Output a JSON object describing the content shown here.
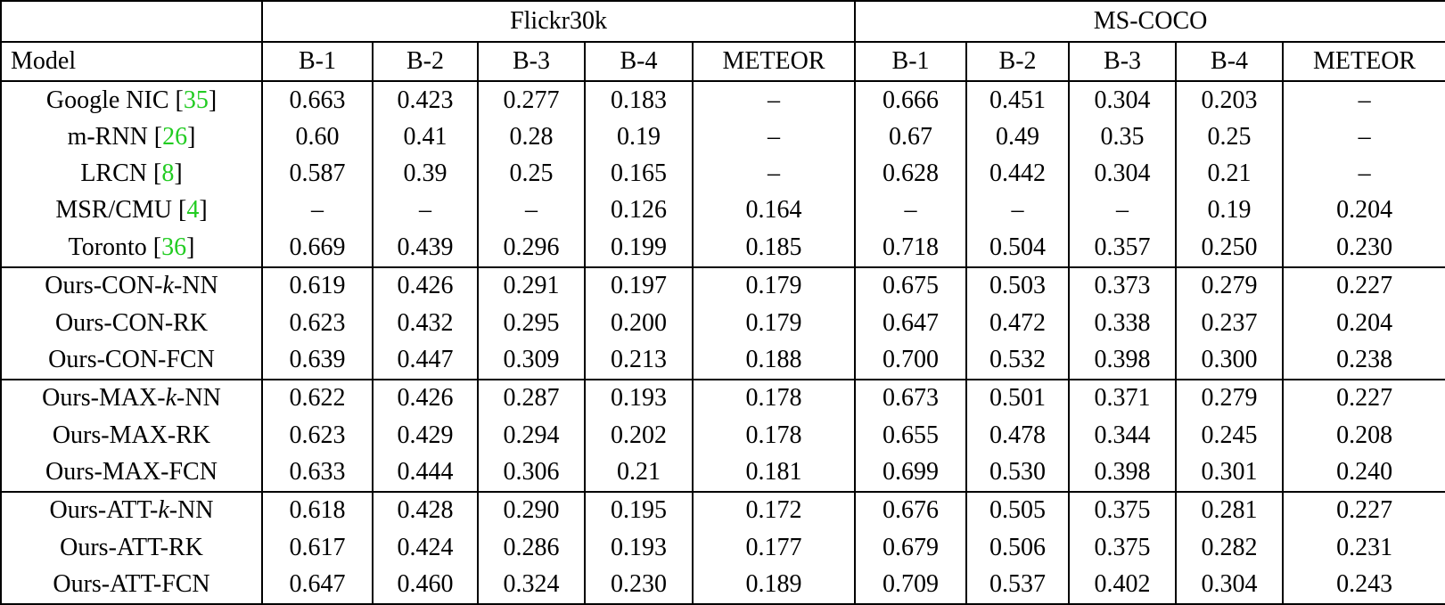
{
  "table": {
    "datasets": [
      "Flickr30k",
      "MS-COCO"
    ],
    "columns": [
      "Model",
      "B-1",
      "B-2",
      "B-3",
      "B-4",
      "METEOR",
      "B-1",
      "B-2",
      "B-3",
      "B-4",
      "METEOR"
    ],
    "cite_color": "#22cc22",
    "missing_value_glyph": "–",
    "rows": [
      {
        "model": [
          [
            "Google NIC [",
            "text"
          ],
          [
            "35",
            "cite"
          ],
          [
            "]",
            "text"
          ]
        ],
        "cells": [
          "0.663",
          "0.423",
          "0.277",
          "0.183",
          "–",
          "0.666",
          "0.451",
          "0.304",
          "0.203",
          "–"
        ],
        "bold": [],
        "groupStart": false
      },
      {
        "model": [
          [
            "m-RNN [",
            "text"
          ],
          [
            "26",
            "cite"
          ],
          [
            "]",
            "text"
          ]
        ],
        "cells": [
          "0.60",
          "0.41",
          "0.28",
          "0.19",
          "–",
          "0.67",
          "0.49",
          "0.35",
          "0.25",
          "–"
        ],
        "bold": [],
        "groupStart": false
      },
      {
        "model": [
          [
            "LRCN [",
            "text"
          ],
          [
            "8",
            "cite"
          ],
          [
            "]",
            "text"
          ]
        ],
        "cells": [
          "0.587",
          "0.39",
          "0.25",
          "0.165",
          "–",
          "0.628",
          "0.442",
          "0.304",
          "0.21",
          "–"
        ],
        "bold": [],
        "groupStart": false
      },
      {
        "model": [
          [
            "MSR/CMU [",
            "text"
          ],
          [
            "4",
            "cite"
          ],
          [
            "]",
            "text"
          ]
        ],
        "cells": [
          "–",
          "–",
          "–",
          "0.126",
          "0.164",
          "–",
          "–",
          "–",
          "0.19",
          "0.204"
        ],
        "bold": [],
        "groupStart": false
      },
      {
        "model": [
          [
            "Toronto [",
            "text"
          ],
          [
            "36",
            "cite"
          ],
          [
            "]",
            "text"
          ]
        ],
        "cells": [
          "0.669",
          "0.439",
          "0.296",
          "0.199",
          "0.185",
          "0.718",
          "0.504",
          "0.357",
          "0.250",
          "0.230"
        ],
        "bold": [
          0,
          5
        ],
        "groupStart": false
      },
      {
        "model": [
          [
            "Ours-CON-",
            "text"
          ],
          [
            "k",
            "kvar"
          ],
          [
            "-NN",
            "text"
          ]
        ],
        "cells": [
          "0.619",
          "0.426",
          "0.291",
          "0.197",
          "0.179",
          "0.675",
          "0.503",
          "0.373",
          "0.279",
          "0.227"
        ],
        "bold": [],
        "groupStart": true
      },
      {
        "model": [
          [
            "Ours-CON-RK",
            "text"
          ]
        ],
        "cells": [
          "0.623",
          "0.432",
          "0.295",
          "0.200",
          "0.179",
          "0.647",
          "0.472",
          "0.338",
          "0.237",
          "0.204"
        ],
        "bold": [],
        "groupStart": false
      },
      {
        "model": [
          [
            "Ours-CON-FCN",
            "text"
          ]
        ],
        "cells": [
          "0.639",
          "0.447",
          "0.309",
          "0.213",
          "0.188",
          "0.700",
          "0.532",
          "0.398",
          "0.300",
          "0.238"
        ],
        "bold": [],
        "groupStart": false
      },
      {
        "model": [
          [
            "Ours-MAX-",
            "text"
          ],
          [
            "k",
            "kvar"
          ],
          [
            "-NN",
            "text"
          ]
        ],
        "cells": [
          "0.622",
          "0.426",
          "0.287",
          "0.193",
          "0.178",
          "0.673",
          "0.501",
          "0.371",
          "0.279",
          "0.227"
        ],
        "bold": [],
        "groupStart": true
      },
      {
        "model": [
          [
            "Ours-MAX-RK",
            "text"
          ]
        ],
        "cells": [
          "0.623",
          "0.429",
          "0.294",
          "0.202",
          "0.178",
          "0.655",
          "0.478",
          "0.344",
          "0.245",
          "0.208"
        ],
        "bold": [],
        "groupStart": false
      },
      {
        "model": [
          [
            "Ours-MAX-FCN",
            "text"
          ]
        ],
        "cells": [
          "0.633",
          "0.444",
          "0.306",
          "0.21",
          "0.181",
          "0.699",
          "0.530",
          "0.398",
          "0.301",
          "0.240"
        ],
        "bold": [],
        "groupStart": false
      },
      {
        "model": [
          [
            "Ours-ATT-",
            "text"
          ],
          [
            "k",
            "kvar"
          ],
          [
            "-NN",
            "text"
          ]
        ],
        "cells": [
          "0.618",
          "0.428",
          "0.290",
          "0.195",
          "0.172",
          "0.676",
          "0.505",
          "0.375",
          "0.281",
          "0.227"
        ],
        "bold": [],
        "groupStart": true
      },
      {
        "model": [
          [
            "Ours-ATT-RK",
            "text"
          ]
        ],
        "cells": [
          "0.617",
          "0.424",
          "0.286",
          "0.193",
          "0.177",
          "0.679",
          "0.506",
          "0.375",
          "0.282",
          "0.231"
        ],
        "bold": [],
        "groupStart": false
      },
      {
        "model": [
          [
            "Ours-ATT-FCN",
            "text"
          ]
        ],
        "cells": [
          "0.647",
          "0.460",
          "0.324",
          "0.230",
          "0.189",
          "0.709",
          "0.537",
          "0.402",
          "0.304",
          "0.243"
        ],
        "bold": [
          1,
          2,
          3,
          4,
          6,
          7,
          8,
          9
        ],
        "groupStart": false
      }
    ]
  }
}
